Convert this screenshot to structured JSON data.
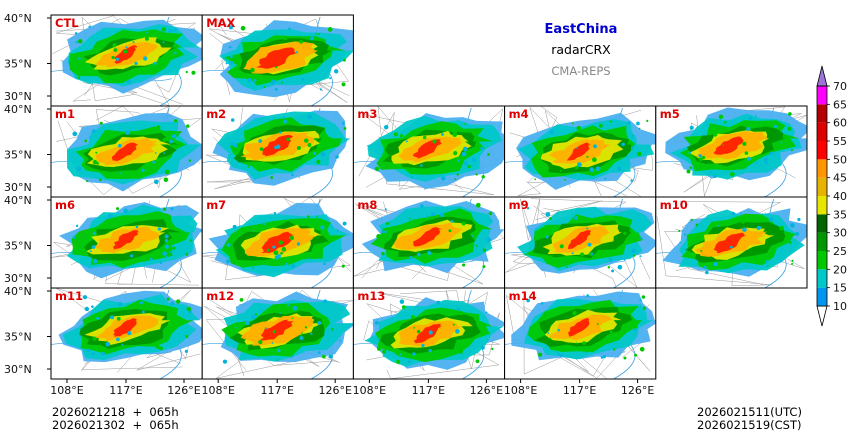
{
  "header": {
    "region": "EastChina",
    "product": "radarCRX",
    "source": "CMA-REPS"
  },
  "colors": {
    "region_title": "#0000cc",
    "source_title": "#888888",
    "panel_label": "#e00000"
  },
  "map": {
    "lat_ticks": [
      "40°N",
      "35°N",
      "30°N"
    ],
    "lon_ticks": [
      "108°E",
      "117°E",
      "126°E"
    ],
    "rows": [
      [
        "CTL",
        "MAX"
      ],
      [
        "m1",
        "m2",
        "m3",
        "m4",
        "m5"
      ],
      [
        "m6",
        "m7",
        "m8",
        "m9",
        "m10"
      ],
      [
        "m11",
        "m12",
        "m13",
        "m14"
      ]
    ]
  },
  "colorbar": {
    "levels": [
      "10",
      "15",
      "20",
      "25",
      "30",
      "35",
      "40",
      "45",
      "50",
      "55",
      "60",
      "65",
      "70"
    ],
    "colors": [
      "#0096f0",
      "#00c8c8",
      "#00c800",
      "#009600",
      "#006400",
      "#e6e600",
      "#e6b400",
      "#ff9600",
      "#ff0000",
      "#dc0000",
      "#b40000",
      "#ff00ff",
      "#9600c8",
      "#9c74d8"
    ]
  },
  "footer": {
    "init_line1": "2026021218  +  065h",
    "init_line2": "2026021302  +  065h",
    "valid_utc": "2026021511(UTC)",
    "valid_cst": "2026021519(CST)"
  }
}
